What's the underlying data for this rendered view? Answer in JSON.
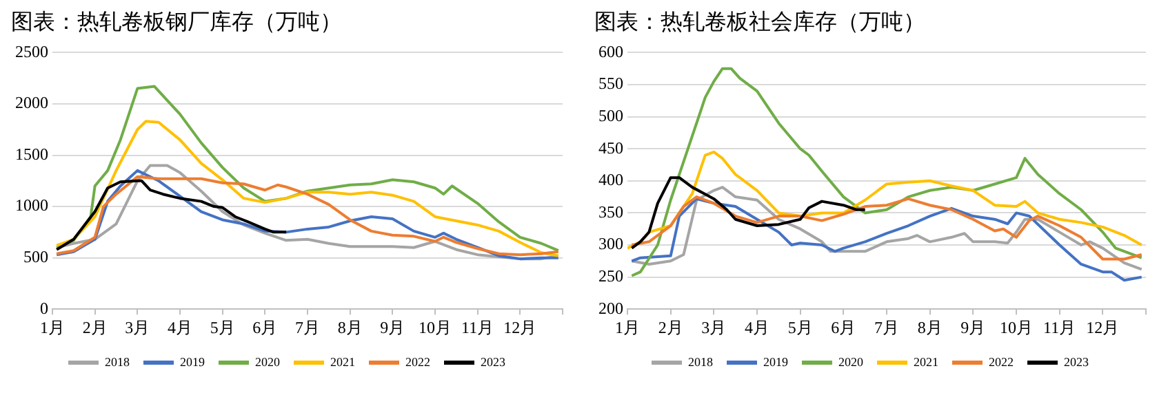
{
  "chart_data": [
    {
      "type": "line",
      "title": "图表：热轧卷板钢厂库存（万吨）",
      "xlim": [
        1,
        13
      ],
      "xticks": [
        {
          "value": 1,
          "label": "1月"
        },
        {
          "value": 2,
          "label": "2月"
        },
        {
          "value": 3,
          "label": "3月"
        },
        {
          "value": 4,
          "label": "4月"
        },
        {
          "value": 5,
          "label": "5月"
        },
        {
          "value": 6,
          "label": "6月"
        },
        {
          "value": 7,
          "label": "7月"
        },
        {
          "value": 8,
          "label": "8月"
        },
        {
          "value": 9,
          "label": "9月"
        },
        {
          "value": 10,
          "label": "10月"
        },
        {
          "value": 11,
          "label": "11月"
        },
        {
          "value": 12,
          "label": "12月"
        },
        {
          "value": 13,
          "label": null
        }
      ],
      "ylim": [
        0,
        2500
      ],
      "yticks": [
        0,
        500,
        1000,
        1500,
        2000,
        2500
      ],
      "grid": "y",
      "legend": "bottom",
      "marker": "none",
      "line_style": "solid",
      "series": [
        {
          "name": "2018",
          "color": "#a5a5a5",
          "x": [
            1.1,
            1.5,
            2,
            2.5,
            3,
            3.3,
            3.7,
            4,
            4.5,
            5,
            5.5,
            6,
            6.5,
            7,
            7.5,
            8,
            8.5,
            9,
            9.5,
            10,
            10.5,
            11,
            11.5,
            12,
            12.5,
            12.9
          ],
          "values": [
            600,
            640,
            680,
            830,
            1250,
            1400,
            1400,
            1330,
            1150,
            950,
            820,
            740,
            670,
            680,
            640,
            610,
            610,
            610,
            600,
            660,
            580,
            530,
            510,
            490,
            490,
            520
          ]
        },
        {
          "name": "2019",
          "color": "#4472c4",
          "x": [
            1.1,
            1.5,
            2,
            2.3,
            2.6,
            3,
            3.5,
            4,
            4.5,
            5,
            5.5,
            6,
            6.5,
            7,
            7.5,
            8,
            8.5,
            9,
            9.5,
            10,
            10.2,
            10.5,
            11,
            11.5,
            12,
            12.5,
            12.9
          ],
          "values": [
            530,
            560,
            680,
            1050,
            1200,
            1350,
            1250,
            1100,
            950,
            870,
            830,
            760,
            750,
            780,
            800,
            860,
            900,
            880,
            760,
            700,
            740,
            680,
            600,
            520,
            490,
            500,
            500
          ]
        },
        {
          "name": "2020",
          "color": "#70ad47",
          "x": [
            1.1,
            1.5,
            1.9,
            2,
            2.3,
            2.6,
            3,
            3.4,
            4,
            4.5,
            5,
            5.5,
            6,
            6.5,
            7,
            7.5,
            8,
            8.5,
            9,
            9.5,
            10,
            10.2,
            10.4,
            11,
            11.5,
            12,
            12.5,
            12.9
          ],
          "values": [
            600,
            670,
            900,
            1200,
            1350,
            1650,
            2150,
            2170,
            1900,
            1620,
            1380,
            1180,
            1050,
            1080,
            1150,
            1180,
            1210,
            1220,
            1260,
            1240,
            1180,
            1120,
            1200,
            1030,
            850,
            700,
            640,
            570
          ]
        },
        {
          "name": "2021",
          "color": "#ffc000",
          "x": [
            1.1,
            1.5,
            2,
            2.5,
            3,
            3.2,
            3.5,
            4,
            4.5,
            5,
            5.5,
            6,
            6.5,
            7,
            7.5,
            8,
            8.5,
            9,
            9.5,
            10,
            10.5,
            11,
            11.5,
            12,
            12.5,
            12.9
          ],
          "values": [
            620,
            680,
            900,
            1350,
            1750,
            1830,
            1820,
            1650,
            1420,
            1260,
            1080,
            1040,
            1080,
            1140,
            1140,
            1120,
            1140,
            1110,
            1050,
            900,
            860,
            820,
            760,
            650,
            550,
            520
          ]
        },
        {
          "name": "2022",
          "color": "#ed7d31",
          "x": [
            1.1,
            1.5,
            2,
            2.2,
            2.5,
            3,
            3.5,
            4,
            4.5,
            5,
            5.5,
            6,
            6.3,
            6.5,
            7,
            7.5,
            8,
            8.5,
            9,
            9.5,
            10,
            10.2,
            10.5,
            11,
            11.5,
            12,
            12.5,
            12.9
          ],
          "values": [
            540,
            570,
            700,
            1000,
            1120,
            1290,
            1270,
            1270,
            1270,
            1230,
            1220,
            1160,
            1210,
            1190,
            1120,
            1020,
            870,
            760,
            720,
            710,
            660,
            700,
            650,
            590,
            540,
            530,
            540,
            560
          ]
        },
        {
          "name": "2023",
          "color": "#000000",
          "x": [
            1.1,
            1.5,
            2,
            2.3,
            2.6,
            3,
            3.1,
            3.3,
            3.6,
            4,
            4.5,
            4.8,
            5,
            5.3,
            5.6,
            6,
            6.2,
            6.5
          ],
          "values": [
            580,
            680,
            950,
            1180,
            1240,
            1250,
            1250,
            1160,
            1120,
            1080,
            1050,
            1000,
            990,
            900,
            850,
            780,
            750,
            750
          ]
        }
      ]
    },
    {
      "type": "line",
      "title": "图表：热轧卷板社会库存（万吨）",
      "xlim": [
        1,
        13
      ],
      "xticks": [
        {
          "value": 1,
          "label": "1月"
        },
        {
          "value": 2,
          "label": "2月"
        },
        {
          "value": 3,
          "label": "3月"
        },
        {
          "value": 4,
          "label": "4月"
        },
        {
          "value": 5,
          "label": "5月"
        },
        {
          "value": 6,
          "label": "6月"
        },
        {
          "value": 7,
          "label": "7月"
        },
        {
          "value": 8,
          "label": "8月"
        },
        {
          "value": 9,
          "label": "9月"
        },
        {
          "value": 10,
          "label": "10月"
        },
        {
          "value": 11,
          "label": "11月"
        },
        {
          "value": 12,
          "label": "12月"
        },
        {
          "value": 13,
          "label": null
        }
      ],
      "ylim": [
        200,
        600
      ],
      "yticks": [
        200,
        250,
        300,
        350,
        400,
        450,
        500,
        550,
        600
      ],
      "grid": "y",
      "legend": "bottom",
      "marker": "none",
      "line_style": "solid",
      "series": [
        {
          "name": "2018",
          "color": "#a5a5a5",
          "x": [
            1.1,
            1.5,
            2,
            2.3,
            2.6,
            3,
            3.2,
            3.5,
            4,
            4.5,
            5,
            5.5,
            5.7,
            6,
            6.5,
            7,
            7.5,
            7.7,
            8,
            8.5,
            8.8,
            9,
            9.5,
            9.8,
            10,
            10.2,
            10.5,
            11,
            11.5,
            11.7,
            12,
            12.5,
            12.9
          ],
          "values": [
            275,
            270,
            275,
            285,
            370,
            385,
            390,
            375,
            370,
            340,
            325,
            305,
            290,
            290,
            290,
            305,
            310,
            315,
            305,
            312,
            318,
            305,
            305,
            303,
            320,
            340,
            340,
            320,
            300,
            305,
            295,
            272,
            262
          ]
        },
        {
          "name": "2019",
          "color": "#4472c4",
          "x": [
            1.1,
            1.3,
            2,
            2.2,
            2.6,
            3,
            3.5,
            4,
            4.5,
            4.8,
            5,
            5.5,
            5.8,
            6,
            6.5,
            7,
            7.5,
            8,
            8.5,
            9,
            9.5,
            9.8,
            10,
            10.3,
            11,
            11.5,
            12,
            12.2,
            12.5,
            12.9
          ],
          "values": [
            275,
            280,
            283,
            345,
            372,
            365,
            360,
            340,
            320,
            300,
            303,
            300,
            290,
            295,
            305,
            318,
            330,
            345,
            357,
            345,
            340,
            333,
            350,
            345,
            300,
            270,
            258,
            258,
            245,
            250
          ]
        },
        {
          "name": "2020",
          "color": "#70ad47",
          "x": [
            1.1,
            1.3,
            1.7,
            2,
            2.5,
            2.8,
            3,
            3.2,
            3.4,
            3.6,
            4,
            4.5,
            5,
            5.2,
            5.5,
            6,
            6.5,
            7,
            7.5,
            8,
            8.5,
            9,
            9.5,
            10,
            10.2,
            10.5,
            11,
            11.5,
            12,
            12.3,
            12.9
          ],
          "values": [
            252,
            258,
            300,
            370,
            470,
            530,
            555,
            575,
            575,
            560,
            540,
            490,
            450,
            440,
            415,
            375,
            350,
            355,
            375,
            385,
            390,
            385,
            395,
            405,
            435,
            410,
            380,
            355,
            320,
            295,
            280
          ]
        },
        {
          "name": "2021",
          "color": "#ffc000",
          "x": [
            1,
            1.3,
            1.5,
            2,
            2.5,
            2.8,
            3,
            3.2,
            3.5,
            4,
            4.5,
            5,
            5.5,
            6,
            6.5,
            7,
            7.5,
            8,
            8.5,
            9,
            9.5,
            10,
            10.2,
            10.5,
            11,
            11.5,
            12,
            12.5,
            12.9
          ],
          "values": [
            295,
            305,
            320,
            330,
            380,
            440,
            445,
            435,
            410,
            385,
            350,
            345,
            350,
            350,
            370,
            395,
            398,
            400,
            392,
            385,
            362,
            360,
            368,
            350,
            340,
            335,
            328,
            315,
            300
          ]
        },
        {
          "name": "2022",
          "color": "#ed7d31",
          "x": [
            1.1,
            1.5,
            2,
            2.3,
            2.6,
            3,
            3.5,
            4,
            4.5,
            5,
            5.5,
            6,
            6.5,
            7,
            7.5,
            8,
            8.5,
            9,
            9.5,
            9.7,
            10,
            10.3,
            10.5,
            11,
            11.5,
            12,
            12.5,
            12.9
          ],
          "values": [
            300,
            305,
            330,
            360,
            375,
            365,
            345,
            335,
            345,
            345,
            338,
            348,
            360,
            362,
            372,
            362,
            355,
            340,
            322,
            325,
            312,
            338,
            345,
            330,
            312,
            278,
            278,
            285
          ]
        },
        {
          "name": "2023",
          "color": "#000000",
          "x": [
            1.1,
            1.3,
            1.5,
            1.7,
            2,
            2.2,
            2.5,
            3,
            3.3,
            3.5,
            4,
            4.5,
            5,
            5.2,
            5.5,
            6,
            6.3,
            6.5
          ],
          "values": [
            295,
            305,
            320,
            365,
            405,
            405,
            390,
            372,
            355,
            340,
            330,
            332,
            340,
            358,
            368,
            362,
            355,
            355
          ]
        }
      ]
    }
  ]
}
